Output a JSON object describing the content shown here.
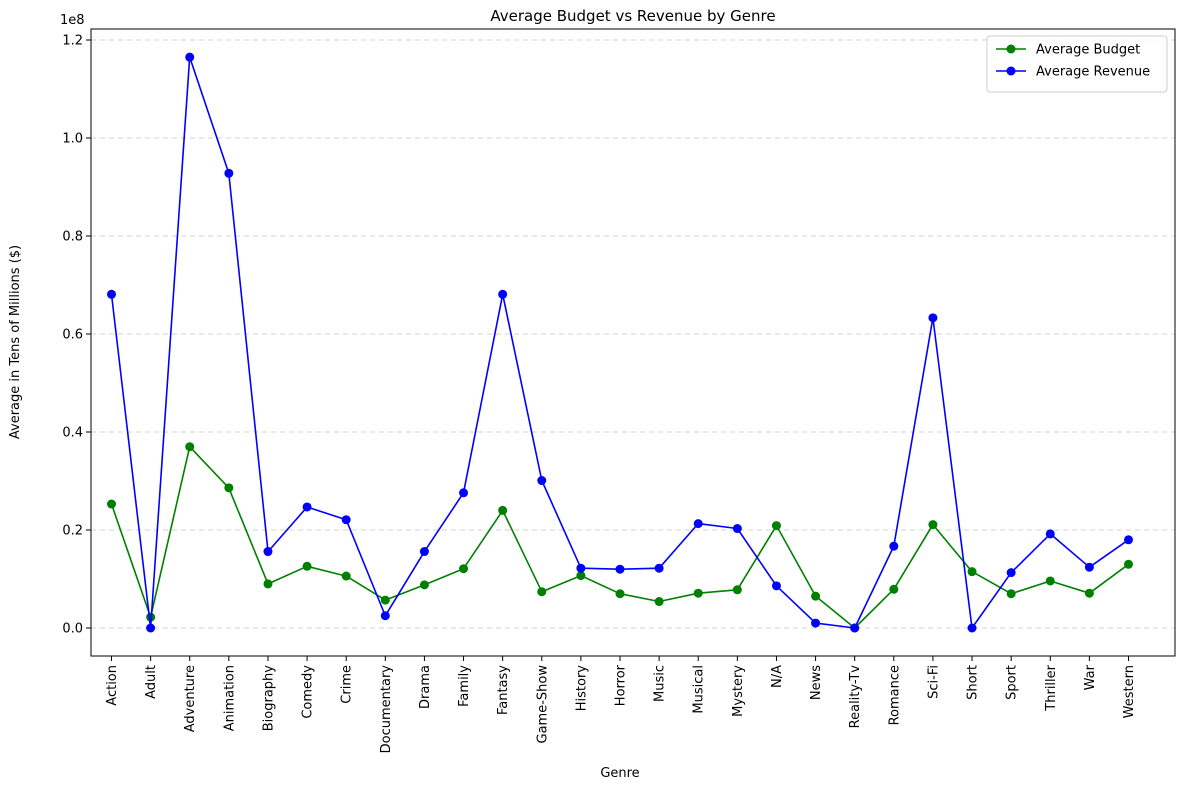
{
  "chart_data": {
    "type": "line",
    "title": "Average Budget vs Revenue by Genre",
    "xlabel": "Genre",
    "ylabel": "Average in Tens of Millions ($)",
    "y_offset_label": "1e8",
    "ylim": [
      -0.055,
      1.225
    ],
    "y_scale_factor": 100000000,
    "yticks": [
      0.0,
      0.2,
      0.4,
      0.6,
      0.8,
      1.0,
      1.2
    ],
    "ytick_labels": [
      "0.0",
      "0.2",
      "0.4",
      "0.6",
      "0.8",
      "1.0",
      "1.2"
    ],
    "grid": "y-dashed",
    "legend_position": "top-right",
    "categories": [
      "Action",
      "Adult",
      "Adventure",
      "Animation",
      "Biography",
      "Comedy",
      "Crime",
      "Documentary",
      "Drama",
      "Family",
      "Fantasy",
      "Game-Show",
      "History",
      "Horror",
      "Music",
      "Musical",
      "Mystery",
      "N/A",
      "News",
      "Reality-Tv",
      "Romance",
      "Sci-Fi",
      "Short",
      "Sport",
      "Thriller",
      "War",
      "Western"
    ],
    "series": [
      {
        "name": "Average Budget",
        "color": "#008000",
        "marker": "circle",
        "values": [
          0.253,
          0.022,
          0.37,
          0.286,
          0.09,
          0.126,
          0.106,
          0.057,
          0.088,
          0.121,
          0.24,
          0.074,
          0.107,
          0.07,
          0.054,
          0.071,
          0.078,
          0.209,
          0.065,
          0.0,
          0.079,
          0.211,
          0.115,
          0.07,
          0.096,
          0.071,
          0.13
        ]
      },
      {
        "name": "Average Revenue",
        "color": "#0000ff",
        "marker": "circle",
        "values": [
          0.681,
          0.0,
          1.165,
          0.928,
          0.156,
          0.247,
          0.221,
          0.025,
          0.156,
          0.276,
          0.681,
          0.301,
          0.122,
          0.12,
          0.122,
          0.213,
          0.203,
          0.086,
          0.01,
          0.0,
          0.167,
          0.633,
          0.0,
          0.113,
          0.192,
          0.124,
          0.18
        ]
      }
    ]
  }
}
